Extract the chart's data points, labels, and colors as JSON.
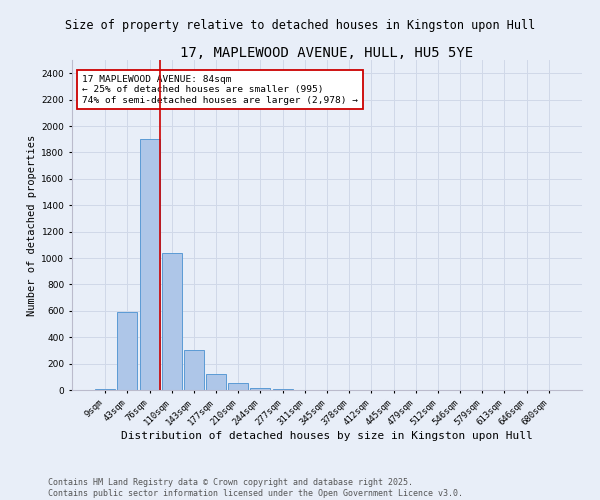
{
  "title": "17, MAPLEWOOD AVENUE, HULL, HU5 5YE",
  "subtitle": "Size of property relative to detached houses in Kingston upon Hull",
  "xlabel": "Distribution of detached houses by size in Kingston upon Hull",
  "ylabel": "Number of detached properties",
  "bar_labels": [
    "9sqm",
    "43sqm",
    "76sqm",
    "110sqm",
    "143sqm",
    "177sqm",
    "210sqm",
    "244sqm",
    "277sqm",
    "311sqm",
    "345sqm",
    "378sqm",
    "412sqm",
    "445sqm",
    "479sqm",
    "512sqm",
    "546sqm",
    "579sqm",
    "613sqm",
    "646sqm",
    "680sqm"
  ],
  "bar_values": [
    10,
    590,
    1900,
    1040,
    300,
    120,
    50,
    18,
    5,
    2,
    1,
    0,
    0,
    0,
    0,
    0,
    0,
    0,
    0,
    0,
    0
  ],
  "bar_color": "#aec6e8",
  "bar_edge_color": "#5b9bd5",
  "grid_color": "#d0d8e8",
  "background_color": "#e8eef8",
  "vline_pos": 2.45,
  "vline_color": "#cc0000",
  "annotation_text": "17 MAPLEWOOD AVENUE: 84sqm\n← 25% of detached houses are smaller (995)\n74% of semi-detached houses are larger (2,978) →",
  "annotation_box_color": "#ffffff",
  "annotation_box_edge": "#cc0000",
  "footer_text": "Contains HM Land Registry data © Crown copyright and database right 2025.\nContains public sector information licensed under the Open Government Licence v3.0.",
  "ylim": [
    0,
    2500
  ],
  "yticks": [
    0,
    200,
    400,
    600,
    800,
    1000,
    1200,
    1400,
    1600,
    1800,
    2000,
    2200,
    2400
  ],
  "title_fontsize": 10,
  "subtitle_fontsize": 8.5,
  "xlabel_fontsize": 8,
  "ylabel_fontsize": 7.5,
  "tick_fontsize": 6.5,
  "annotation_fontsize": 6.8,
  "footer_fontsize": 6
}
